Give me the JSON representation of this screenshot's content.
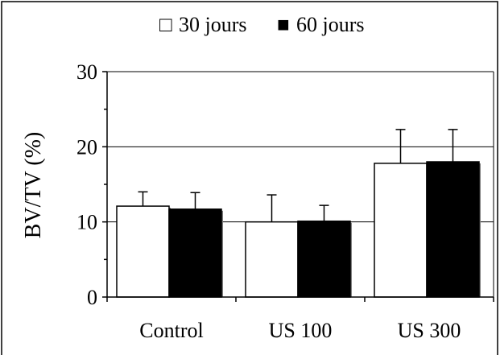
{
  "chart_data": {
    "type": "bar",
    "title": "",
    "xlabel": "",
    "ylabel": "BV/TV (%)",
    "categories": [
      "Control",
      "US 100",
      "US 300"
    ],
    "series": [
      {
        "name": "30 jours",
        "values": [
          12.1,
          10.0,
          17.8
        ],
        "errors": [
          1.9,
          3.6,
          4.5
        ],
        "color": "#ffffff",
        "marker": "□"
      },
      {
        "name": "60 jours",
        "values": [
          11.7,
          10.1,
          18.0
        ],
        "errors": [
          2.2,
          2.1,
          4.3
        ],
        "color": "#000000",
        "marker": "■"
      }
    ],
    "ylim": [
      0,
      30
    ],
    "yticks": [
      "0",
      "10",
      "20",
      "30"
    ],
    "grid": true,
    "legend": "top"
  }
}
